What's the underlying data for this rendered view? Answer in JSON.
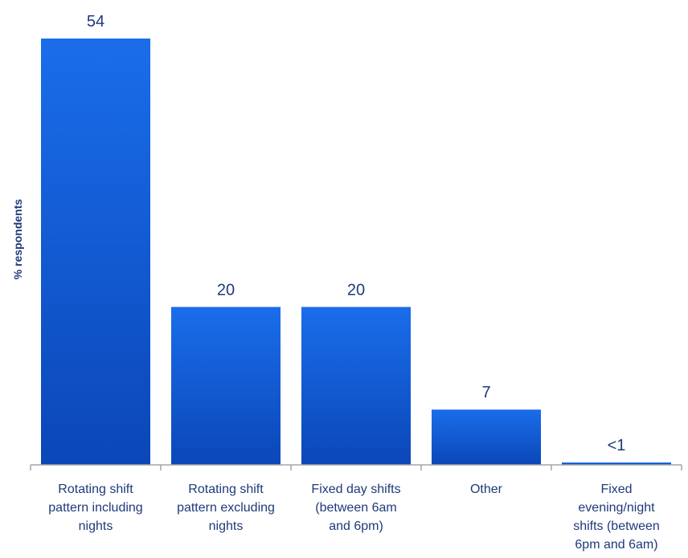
{
  "chart_data": {
    "type": "bar",
    "ylabel": "% respondents",
    "categories": [
      [
        "Rotating shift",
        "pattern including",
        "nights"
      ],
      [
        "Rotating shift",
        "pattern excluding",
        "nights"
      ],
      [
        "Fixed day shifts",
        "(between 6am",
        "and 6pm)"
      ],
      [
        "Other"
      ],
      [
        "Fixed",
        "evening/night",
        "shifts (between",
        "6pm and 6am)"
      ]
    ],
    "values": [
      54,
      20,
      20,
      7,
      0.3
    ],
    "value_labels": [
      "54",
      "20",
      "20",
      "7",
      "<1"
    ],
    "ylim": [
      0,
      54
    ],
    "grid": false,
    "bar_color_top": "#1a6dea",
    "bar_color_bottom": "#0b47b8",
    "axis_color": "#a6a6a6",
    "text_color": "#1f3a7a"
  }
}
